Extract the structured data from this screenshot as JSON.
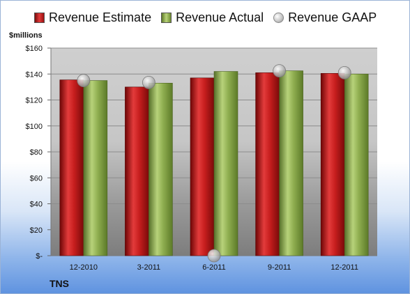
{
  "chart_data": {
    "type": "bar",
    "ylabel": "$millions",
    "company": "TNS",
    "categories": [
      "12-2010",
      "3-2011",
      "6-2011",
      "9-2011",
      "12-2011"
    ],
    "series": [
      {
        "name": "Revenue Estimate",
        "values": [
          135.5,
          130,
          137,
          141,
          140.5
        ],
        "color": "#cc2020"
      },
      {
        "name": "Revenue Actual",
        "values": [
          135,
          133,
          142,
          142.5,
          140
        ],
        "color": "#8aab4a"
      },
      {
        "name": "Revenue GAAP",
        "values": [
          135,
          133.5,
          0,
          142.5,
          141
        ],
        "color": "#bfbfbf"
      }
    ],
    "ylim": [
      0,
      160
    ],
    "yticks": [
      "$-",
      "$20",
      "$40",
      "$60",
      "$80",
      "$100",
      "$120",
      "$140",
      "$160"
    ],
    "grid": true,
    "legend_position": "top"
  }
}
